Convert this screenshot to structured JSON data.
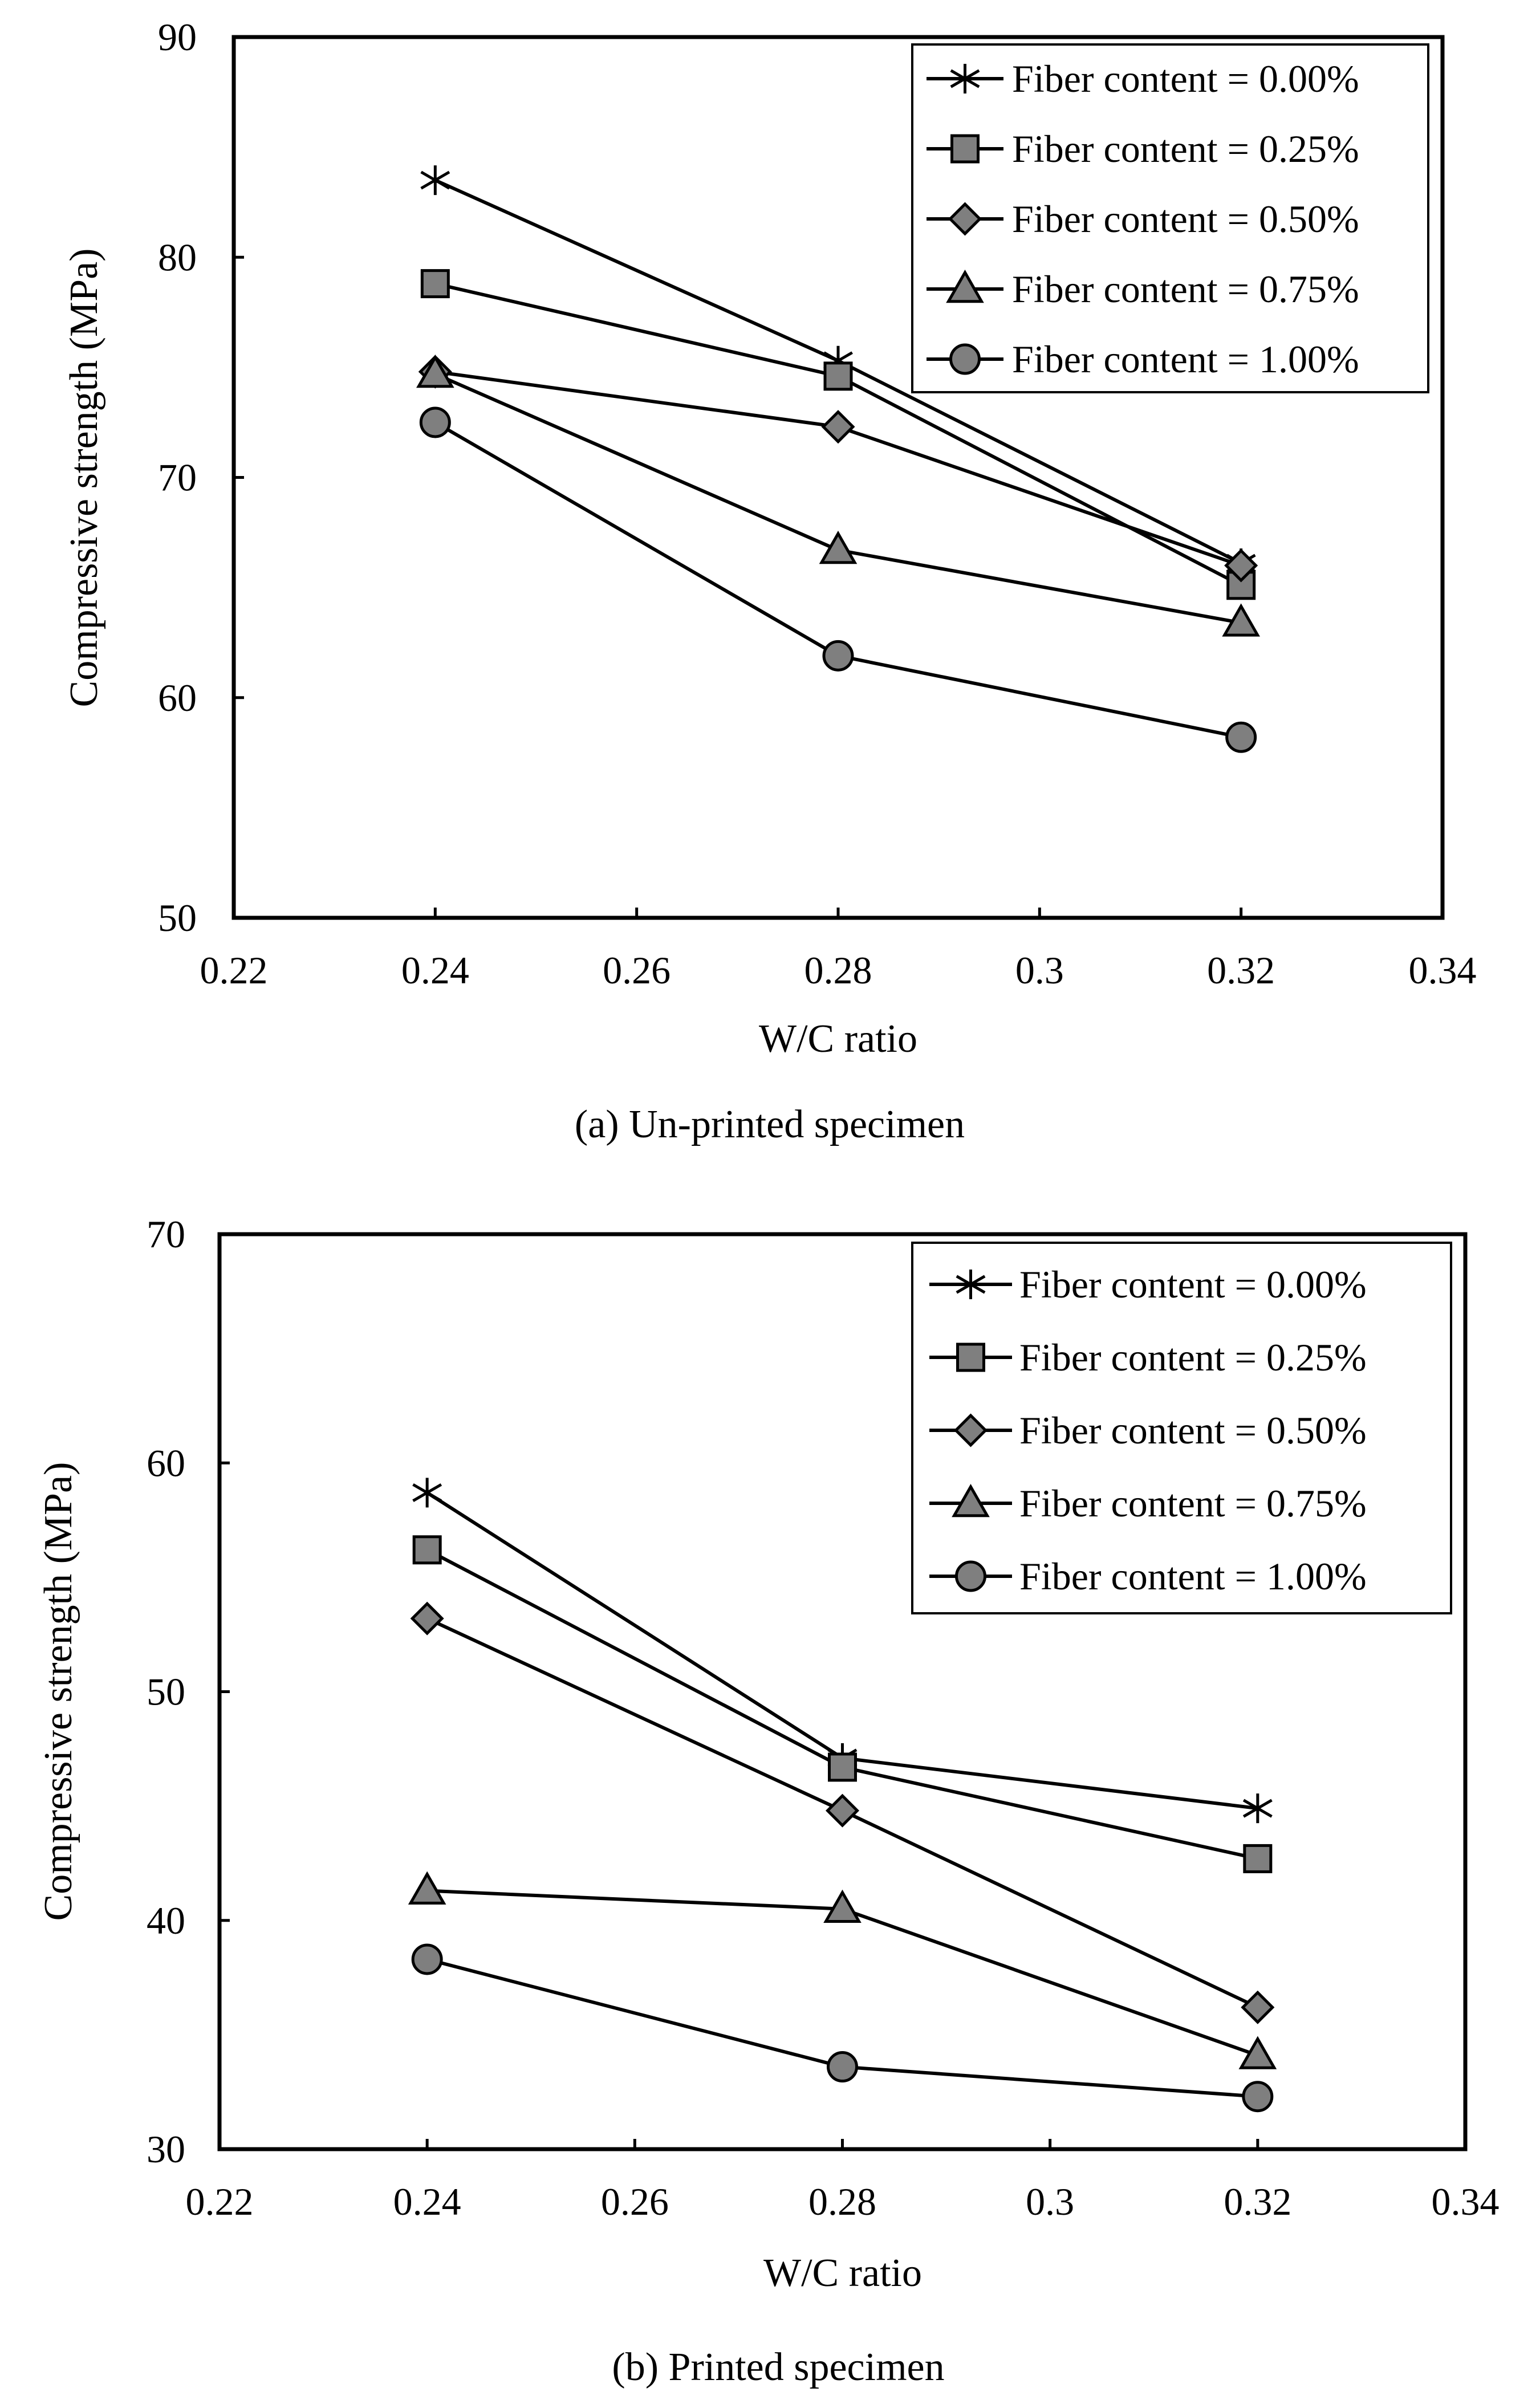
{
  "chart_data": [
    {
      "type": "line",
      "title": "",
      "caption": "(a) Un-printed specimen",
      "xlabel": "W/C ratio",
      "ylabel": "Compressive strength (MPa)",
      "xlim": [
        0.22,
        0.34
      ],
      "ylim": [
        50,
        90
      ],
      "x_ticks": [
        "0.22",
        "0.24",
        "0.26",
        "0.28",
        "0.3",
        "0.32",
        "0.34"
      ],
      "y_ticks": [
        "50",
        "60",
        "70",
        "80",
        "90"
      ],
      "grid": false,
      "legend_position": "top-right",
      "x": [
        0.24,
        0.28,
        0.32
      ],
      "series": [
        {
          "name": "Fiber content = 0.00%",
          "marker": "asterisk",
          "values": [
            83.5,
            75.3,
            66.1
          ]
        },
        {
          "name": "Fiber content = 0.25%",
          "marker": "square",
          "values": [
            78.8,
            74.6,
            65.1
          ]
        },
        {
          "name": "Fiber content = 0.50%",
          "marker": "diamond",
          "values": [
            74.8,
            72.3,
            66.0
          ]
        },
        {
          "name": "Fiber content = 0.75%",
          "marker": "triangle",
          "values": [
            74.7,
            66.7,
            63.4
          ]
        },
        {
          "name": "Fiber content = 1.00%",
          "marker": "circle",
          "values": [
            72.5,
            61.9,
            58.2
          ]
        }
      ]
    },
    {
      "type": "line",
      "title": "",
      "caption": "(b) Printed specimen",
      "xlabel": "W/C ratio",
      "ylabel": "Compressive strength (MPa)",
      "xlim": [
        0.22,
        0.34
      ],
      "ylim": [
        30,
        70
      ],
      "x_ticks": [
        "0.22",
        "0.24",
        "0.26",
        "0.28",
        "0.3",
        "0.32",
        "0.34"
      ],
      "y_ticks": [
        "30",
        "40",
        "50",
        "60",
        "70"
      ],
      "grid": false,
      "legend_position": "top-right",
      "x": [
        0.24,
        0.28,
        0.32
      ],
      "series": [
        {
          "name": "Fiber content = 0.00%",
          "marker": "asterisk",
          "values": [
            58.7,
            47.1,
            44.9
          ]
        },
        {
          "name": "Fiber content = 0.25%",
          "marker": "square",
          "values": [
            56.2,
            46.7,
            42.7
          ]
        },
        {
          "name": "Fiber content = 0.50%",
          "marker": "diamond",
          "values": [
            53.2,
            44.8,
            36.2
          ]
        },
        {
          "name": "Fiber content = 0.75%",
          "marker": "triangle",
          "values": [
            41.3,
            40.5,
            34.1
          ]
        },
        {
          "name": "Fiber content = 1.00%",
          "marker": "circle",
          "values": [
            38.3,
            33.6,
            32.3
          ]
        }
      ]
    }
  ],
  "colors": {
    "line": "#000000",
    "marker_fill": "#7f7f7f",
    "background": "#ffffff"
  }
}
